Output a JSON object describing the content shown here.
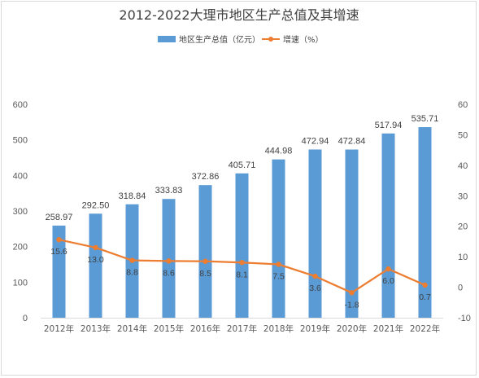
{
  "chart_data": {
    "type": "bar",
    "title": "2012-2022大理市地区生产总值及其增速",
    "categories": [
      "2012年",
      "2013年",
      "2014年",
      "2015年",
      "2016年",
      "2017年",
      "2018年",
      "2019年",
      "2020年",
      "2021年",
      "2022年"
    ],
    "series": [
      {
        "name": "地区生产总值（亿元）",
        "type": "bar",
        "axis": "left",
        "color": "#5b9bd5",
        "values": [
          258.97,
          292.5,
          318.84,
          333.83,
          372.86,
          405.71,
          444.98,
          472.94,
          472.84,
          517.94,
          535.71
        ],
        "labels": [
          "258.97",
          "292.50",
          "318.84",
          "333.83",
          "372.86",
          "405.71",
          "444.98",
          "472.94",
          "472.84",
          "517.94",
          "535.71"
        ]
      },
      {
        "name": "增速（%）",
        "type": "line",
        "axis": "right",
        "color": "#ed7d31",
        "values": [
          15.6,
          13.0,
          8.8,
          8.6,
          8.5,
          8.1,
          7.5,
          3.6,
          -1.8,
          6.0,
          0.7
        ],
        "labels": [
          "15.6",
          "13.0",
          "8.8",
          "8.6",
          "8.5",
          "8.1",
          "7.5",
          "3.6",
          "-1.8",
          "6.0",
          "0.7"
        ]
      }
    ],
    "y_left": {
      "range": [
        0,
        600
      ],
      "ticks": [
        "0",
        "100",
        "200",
        "300",
        "400",
        "500",
        "600"
      ]
    },
    "y_right": {
      "range": [
        -10,
        60
      ],
      "ticks": [
        "-10",
        "0",
        "10",
        "20",
        "30",
        "40",
        "50",
        "60"
      ]
    },
    "legend": "top-center",
    "grid": false
  }
}
